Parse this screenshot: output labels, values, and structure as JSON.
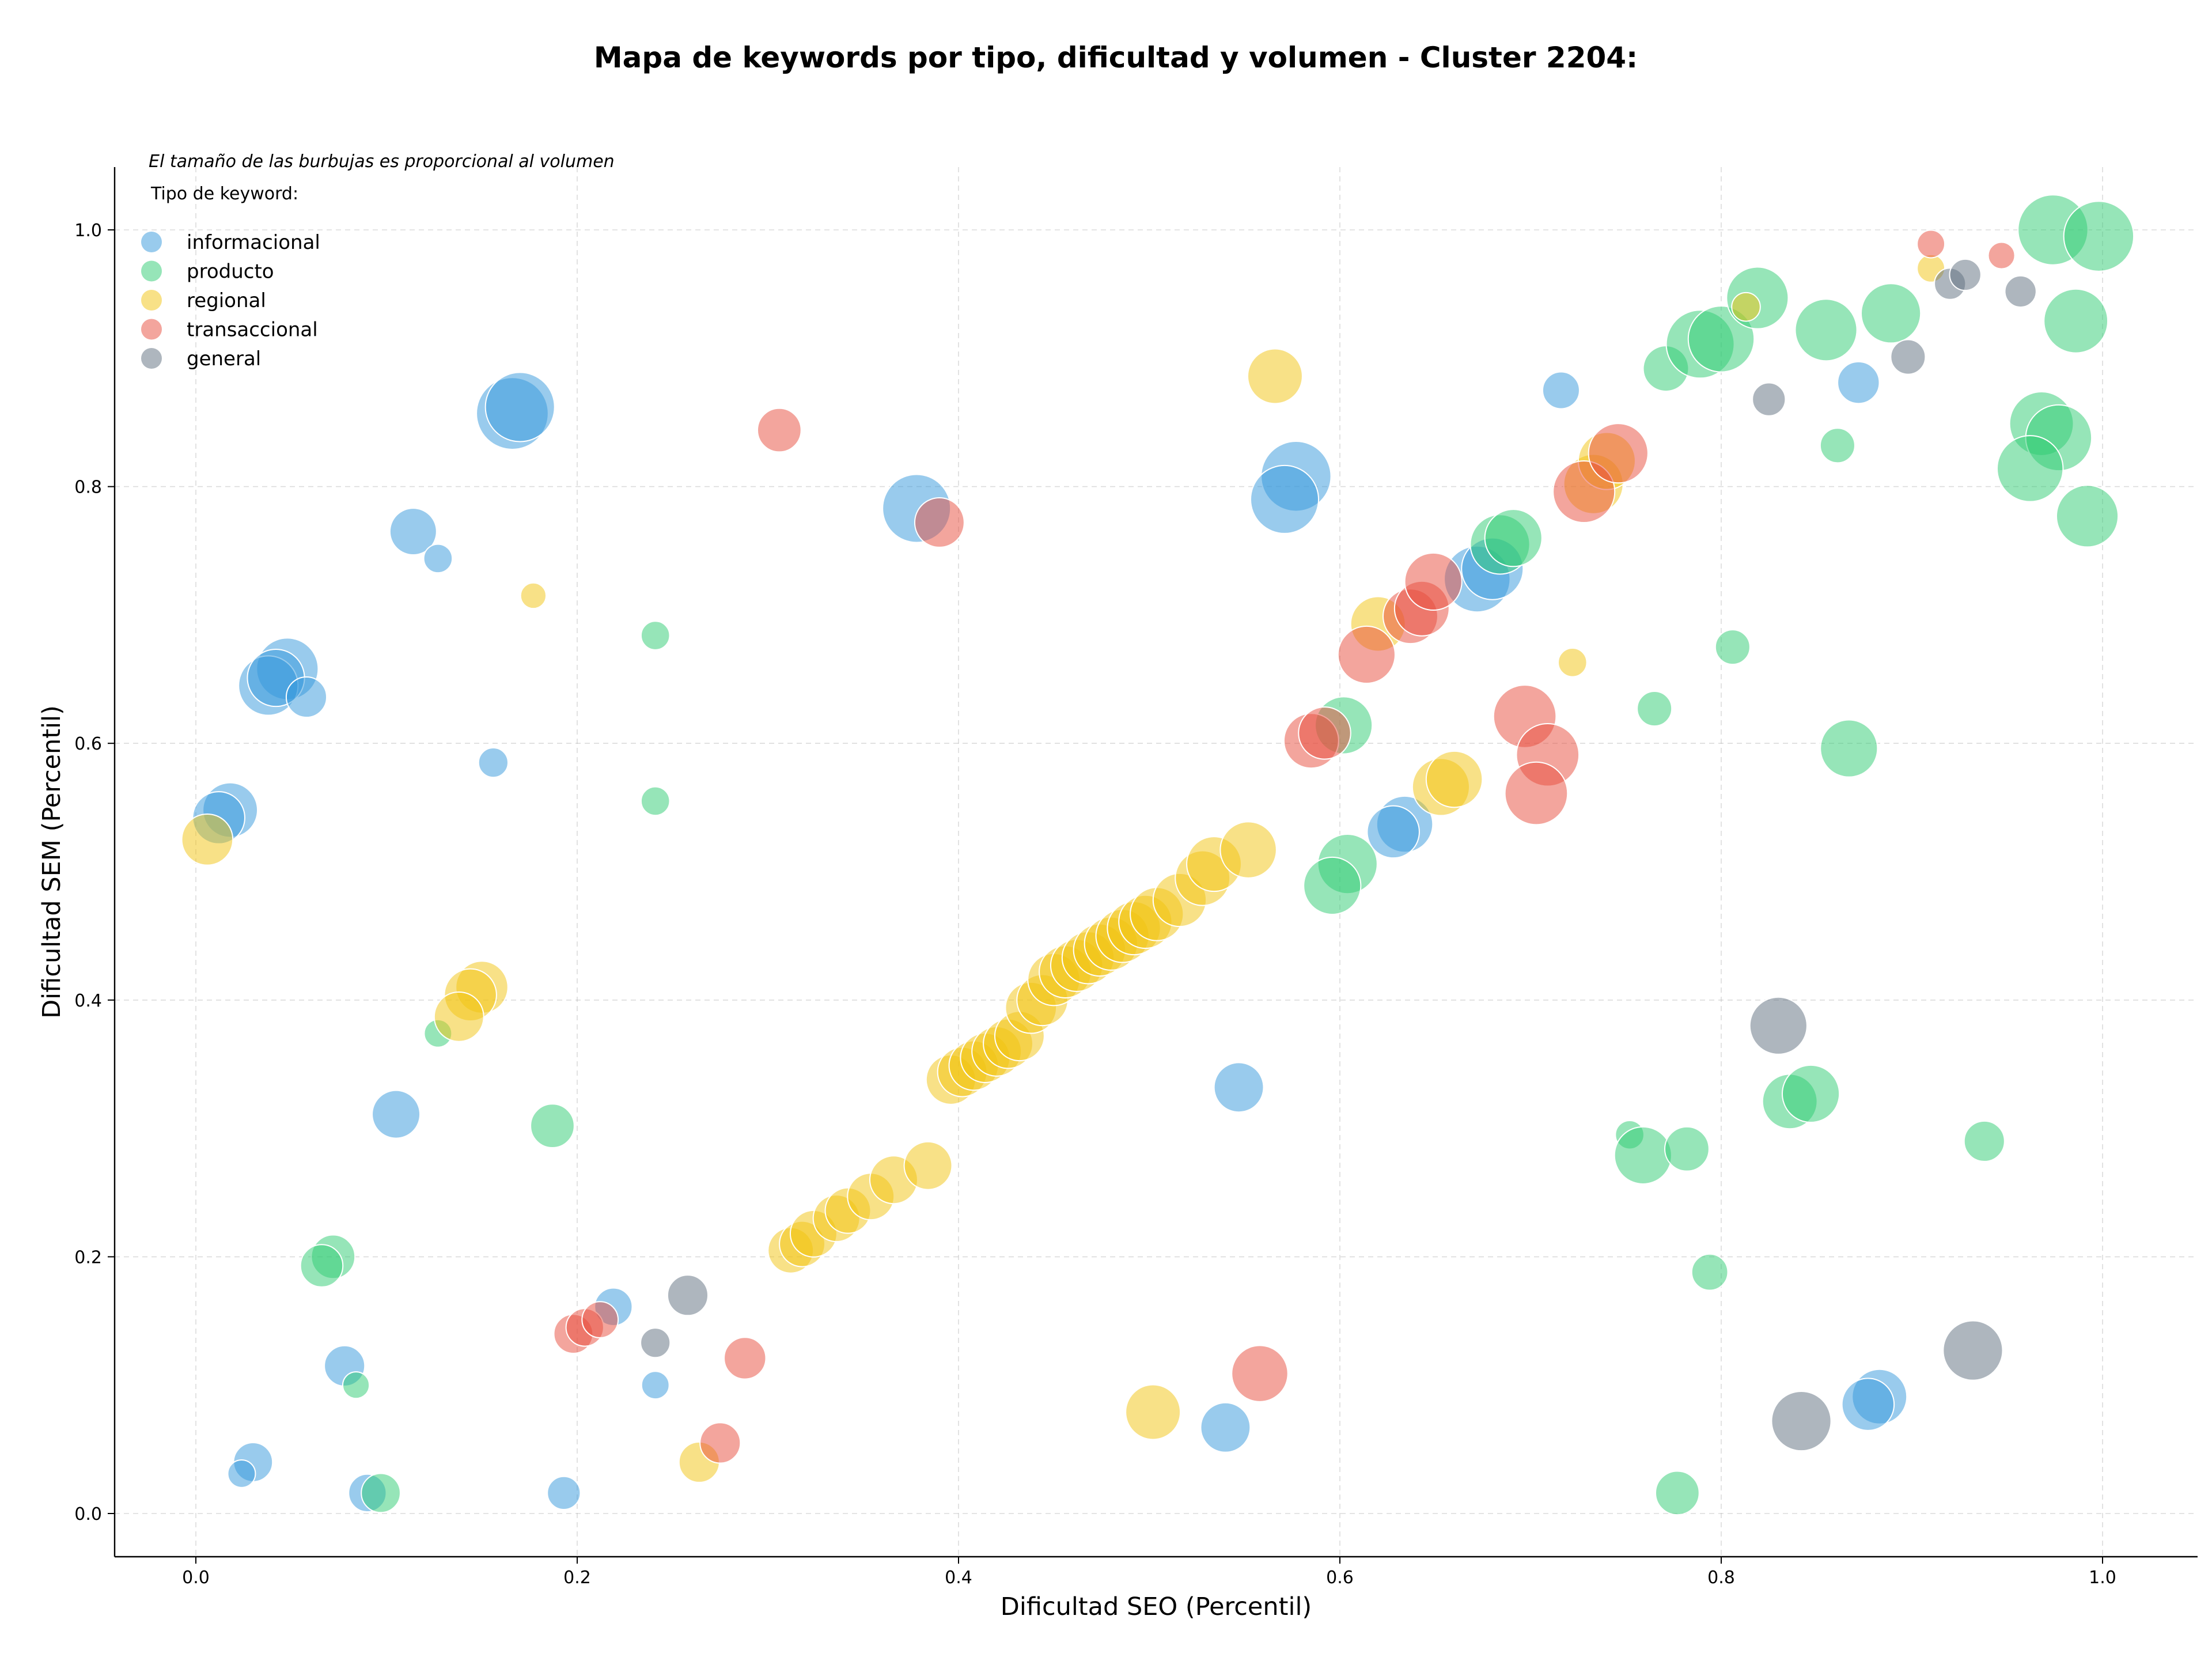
{
  "chart_data": {
    "type": "scatter",
    "title": "Mapa de keywords por tipo, dificultad y volumen - Cluster 2204:",
    "xlabel": "Dificultad SEO (Percentil)",
    "ylabel": "Dificultad SEM (Percentil)",
    "size_note": "El tamaño de las burbujas es proporcional al volumen",
    "legend_title": "Tipo de keyword:",
    "legend_position": "top-left",
    "grid": true,
    "xlim": [
      -0.045,
      1.05
    ],
    "ylim": [
      -0.033,
      1.05
    ],
    "xticks": [
      "0.0",
      "0.2",
      "0.4",
      "0.6",
      "0.8",
      "1.0"
    ],
    "yticks": [
      "0.0",
      "0.2",
      "0.4",
      "0.6",
      "0.8",
      "1.0"
    ],
    "series": [
      {
        "name": "informacional",
        "color": "#3498db",
        "points": [
          {
            "x": 0.166,
            "y": 0.857,
            "volume": 95
          },
          {
            "x": 0.17,
            "y": 0.862,
            "volume": 88
          },
          {
            "x": 0.114,
            "y": 0.765,
            "volume": 40
          },
          {
            "x": 0.127,
            "y": 0.744,
            "volume": 15
          },
          {
            "x": 0.048,
            "y": 0.658,
            "volume": 70
          },
          {
            "x": 0.038,
            "y": 0.645,
            "volume": 65
          },
          {
            "x": 0.042,
            "y": 0.651,
            "volume": 60
          },
          {
            "x": 0.058,
            "y": 0.636,
            "volume": 30
          },
          {
            "x": 0.156,
            "y": 0.585,
            "volume": 16
          },
          {
            "x": 0.018,
            "y": 0.548,
            "volume": 55
          },
          {
            "x": 0.012,
            "y": 0.542,
            "volume": 50
          },
          {
            "x": 0.105,
            "y": 0.311,
            "volume": 42
          },
          {
            "x": 0.219,
            "y": 0.161,
            "volume": 26
          },
          {
            "x": 0.078,
            "y": 0.115,
            "volume": 30
          },
          {
            "x": 0.03,
            "y": 0.04,
            "volume": 28
          },
          {
            "x": 0.024,
            "y": 0.031,
            "volume": 14
          },
          {
            "x": 0.09,
            "y": 0.016,
            "volume": 26
          },
          {
            "x": 0.193,
            "y": 0.016,
            "volume": 20
          },
          {
            "x": 0.241,
            "y": 0.1,
            "volume": 14
          },
          {
            "x": 0.378,
            "y": 0.783,
            "volume": 85
          },
          {
            "x": 0.577,
            "y": 0.808,
            "volume": 90
          },
          {
            "x": 0.571,
            "y": 0.79,
            "volume": 85
          },
          {
            "x": 0.547,
            "y": 0.332,
            "volume": 45
          },
          {
            "x": 0.54,
            "y": 0.067,
            "volume": 45
          },
          {
            "x": 0.634,
            "y": 0.537,
            "volume": 58
          },
          {
            "x": 0.628,
            "y": 0.531,
            "volume": 50
          },
          {
            "x": 0.672,
            "y": 0.728,
            "volume": 80
          },
          {
            "x": 0.68,
            "y": 0.736,
            "volume": 70
          },
          {
            "x": 0.716,
            "y": 0.875,
            "volume": 25
          },
          {
            "x": 0.872,
            "y": 0.881,
            "volume": 32
          },
          {
            "x": 0.883,
            "y": 0.091,
            "volume": 55
          },
          {
            "x": 0.877,
            "y": 0.085,
            "volume": 50
          }
        ]
      },
      {
        "name": "producto",
        "color": "#2ecc71",
        "points": [
          {
            "x": 0.241,
            "y": 0.684,
            "volume": 15
          },
          {
            "x": 0.241,
            "y": 0.555,
            "volume": 15
          },
          {
            "x": 0.127,
            "y": 0.374,
            "volume": 14
          },
          {
            "x": 0.187,
            "y": 0.302,
            "volume": 35
          },
          {
            "x": 0.072,
            "y": 0.2,
            "volume": 35
          },
          {
            "x": 0.066,
            "y": 0.193,
            "volume": 33
          },
          {
            "x": 0.084,
            "y": 0.1,
            "volume": 13
          },
          {
            "x": 0.097,
            "y": 0.016,
            "volume": 28
          },
          {
            "x": 0.602,
            "y": 0.614,
            "volume": 60
          },
          {
            "x": 0.604,
            "y": 0.506,
            "volume": 65
          },
          {
            "x": 0.596,
            "y": 0.489,
            "volume": 60
          },
          {
            "x": 0.684,
            "y": 0.755,
            "volume": 65
          },
          {
            "x": 0.691,
            "y": 0.76,
            "volume": 60
          },
          {
            "x": 0.765,
            "y": 0.627,
            "volume": 22
          },
          {
            "x": 0.806,
            "y": 0.675,
            "volume": 22
          },
          {
            "x": 0.771,
            "y": 0.892,
            "volume": 38
          },
          {
            "x": 0.789,
            "y": 0.911,
            "volume": 85
          },
          {
            "x": 0.8,
            "y": 0.915,
            "volume": 80
          },
          {
            "x": 0.819,
            "y": 0.947,
            "volume": 70
          },
          {
            "x": 0.855,
            "y": 0.922,
            "volume": 70
          },
          {
            "x": 0.889,
            "y": 0.935,
            "volume": 65
          },
          {
            "x": 0.861,
            "y": 0.832,
            "volume": 22
          },
          {
            "x": 0.867,
            "y": 0.596,
            "volume": 60
          },
          {
            "x": 0.836,
            "y": 0.321,
            "volume": 55
          },
          {
            "x": 0.847,
            "y": 0.327,
            "volume": 60
          },
          {
            "x": 0.752,
            "y": 0.295,
            "volume": 15
          },
          {
            "x": 0.759,
            "y": 0.279,
            "volume": 60
          },
          {
            "x": 0.782,
            "y": 0.284,
            "volume": 36
          },
          {
            "x": 0.794,
            "y": 0.188,
            "volume": 24
          },
          {
            "x": 0.777,
            "y": 0.016,
            "volume": 35
          },
          {
            "x": 0.938,
            "y": 0.29,
            "volume": 30
          },
          {
            "x": 0.974,
            "y": 1.0,
            "volume": 90
          },
          {
            "x": 0.998,
            "y": 0.995,
            "volume": 90
          },
          {
            "x": 0.986,
            "y": 0.929,
            "volume": 75
          },
          {
            "x": 0.968,
            "y": 0.849,
            "volume": 75
          },
          {
            "x": 0.977,
            "y": 0.838,
            "volume": 80
          },
          {
            "x": 0.962,
            "y": 0.814,
            "volume": 80
          },
          {
            "x": 0.992,
            "y": 0.777,
            "volume": 70
          }
        ]
      },
      {
        "name": "regional",
        "color": "#f1c40f",
        "points": [
          {
            "x": 0.177,
            "y": 0.715,
            "volume": 12
          },
          {
            "x": 0.006,
            "y": 0.525,
            "volume": 48
          },
          {
            "x": 0.15,
            "y": 0.41,
            "volume": 50
          },
          {
            "x": 0.144,
            "y": 0.404,
            "volume": 50
          },
          {
            "x": 0.138,
            "y": 0.387,
            "volume": 45
          },
          {
            "x": 0.264,
            "y": 0.04,
            "volume": 30
          },
          {
            "x": 0.312,
            "y": 0.205,
            "volume": 38
          },
          {
            "x": 0.318,
            "y": 0.21,
            "volume": 38
          },
          {
            "x": 0.324,
            "y": 0.218,
            "volume": 40
          },
          {
            "x": 0.336,
            "y": 0.23,
            "volume": 40
          },
          {
            "x": 0.342,
            "y": 0.236,
            "volume": 38
          },
          {
            "x": 0.354,
            "y": 0.247,
            "volume": 40
          },
          {
            "x": 0.366,
            "y": 0.26,
            "volume": 42
          },
          {
            "x": 0.384,
            "y": 0.271,
            "volume": 42
          },
          {
            "x": 0.396,
            "y": 0.338,
            "volume": 45
          },
          {
            "x": 0.402,
            "y": 0.344,
            "volume": 45
          },
          {
            "x": 0.408,
            "y": 0.349,
            "volume": 45
          },
          {
            "x": 0.414,
            "y": 0.355,
            "volume": 45
          },
          {
            "x": 0.42,
            "y": 0.36,
            "volume": 45
          },
          {
            "x": 0.426,
            "y": 0.366,
            "volume": 45
          },
          {
            "x": 0.432,
            "y": 0.372,
            "volume": 45
          },
          {
            "x": 0.438,
            "y": 0.394,
            "volume": 48
          },
          {
            "x": 0.444,
            "y": 0.4,
            "volume": 48
          },
          {
            "x": 0.45,
            "y": 0.416,
            "volume": 50
          },
          {
            "x": 0.456,
            "y": 0.422,
            "volume": 50
          },
          {
            "x": 0.462,
            "y": 0.427,
            "volume": 50
          },
          {
            "x": 0.468,
            "y": 0.433,
            "volume": 50
          },
          {
            "x": 0.474,
            "y": 0.439,
            "volume": 50
          },
          {
            "x": 0.48,
            "y": 0.444,
            "volume": 52
          },
          {
            "x": 0.486,
            "y": 0.45,
            "volume": 52
          },
          {
            "x": 0.492,
            "y": 0.456,
            "volume": 52
          },
          {
            "x": 0.498,
            "y": 0.461,
            "volume": 52
          },
          {
            "x": 0.504,
            "y": 0.467,
            "volume": 52
          },
          {
            "x": 0.516,
            "y": 0.478,
            "volume": 52
          },
          {
            "x": 0.528,
            "y": 0.495,
            "volume": 55
          },
          {
            "x": 0.534,
            "y": 0.506,
            "volume": 55
          },
          {
            "x": 0.552,
            "y": 0.517,
            "volume": 58
          },
          {
            "x": 0.502,
            "y": 0.079,
            "volume": 55
          },
          {
            "x": 0.566,
            "y": 0.886,
            "volume": 55
          },
          {
            "x": 0.62,
            "y": 0.693,
            "volume": 55
          },
          {
            "x": 0.653,
            "y": 0.566,
            "volume": 60
          },
          {
            "x": 0.66,
            "y": 0.572,
            "volume": 58
          },
          {
            "x": 0.733,
            "y": 0.802,
            "volume": 65
          },
          {
            "x": 0.74,
            "y": 0.82,
            "volume": 60
          },
          {
            "x": 0.722,
            "y": 0.663,
            "volume": 15
          },
          {
            "x": 0.813,
            "y": 0.94,
            "volume": 15
          },
          {
            "x": 0.91,
            "y": 0.97,
            "volume": 14
          }
        ]
      },
      {
        "name": "transaccional",
        "color": "#e74c3c",
        "points": [
          {
            "x": 0.306,
            "y": 0.844,
            "volume": 35
          },
          {
            "x": 0.39,
            "y": 0.772,
            "volume": 45
          },
          {
            "x": 0.198,
            "y": 0.14,
            "volume": 28
          },
          {
            "x": 0.204,
            "y": 0.145,
            "volume": 26
          },
          {
            "x": 0.212,
            "y": 0.151,
            "volume": 24
          },
          {
            "x": 0.288,
            "y": 0.121,
            "volume": 32
          },
          {
            "x": 0.275,
            "y": 0.055,
            "volume": 30
          },
          {
            "x": 0.558,
            "y": 0.109,
            "volume": 58
          },
          {
            "x": 0.585,
            "y": 0.602,
            "volume": 55
          },
          {
            "x": 0.592,
            "y": 0.608,
            "volume": 50
          },
          {
            "x": 0.614,
            "y": 0.669,
            "volume": 60
          },
          {
            "x": 0.637,
            "y": 0.699,
            "volume": 55
          },
          {
            "x": 0.643,
            "y": 0.705,
            "volume": 55
          },
          {
            "x": 0.649,
            "y": 0.726,
            "volume": 60
          },
          {
            "x": 0.697,
            "y": 0.621,
            "volume": 72
          },
          {
            "x": 0.709,
            "y": 0.591,
            "volume": 72
          },
          {
            "x": 0.703,
            "y": 0.561,
            "volume": 72
          },
          {
            "x": 0.728,
            "y": 0.796,
            "volume": 70
          },
          {
            "x": 0.746,
            "y": 0.826,
            "volume": 65
          },
          {
            "x": 0.91,
            "y": 0.989,
            "volume": 14
          },
          {
            "x": 0.947,
            "y": 0.98,
            "volume": 13
          }
        ]
      },
      {
        "name": "general",
        "color": "#5d6d7e",
        "points": [
          {
            "x": 0.258,
            "y": 0.17,
            "volume": 30
          },
          {
            "x": 0.241,
            "y": 0.133,
            "volume": 16
          },
          {
            "x": 0.83,
            "y": 0.38,
            "volume": 60
          },
          {
            "x": 0.842,
            "y": 0.072,
            "volume": 65
          },
          {
            "x": 0.932,
            "y": 0.127,
            "volume": 65
          },
          {
            "x": 0.825,
            "y": 0.868,
            "volume": 20
          },
          {
            "x": 0.898,
            "y": 0.901,
            "volume": 22
          },
          {
            "x": 0.92,
            "y": 0.958,
            "volume": 18
          },
          {
            "x": 0.928,
            "y": 0.965,
            "volume": 18
          },
          {
            "x": 0.957,
            "y": 0.952,
            "volume": 18
          }
        ]
      }
    ]
  }
}
